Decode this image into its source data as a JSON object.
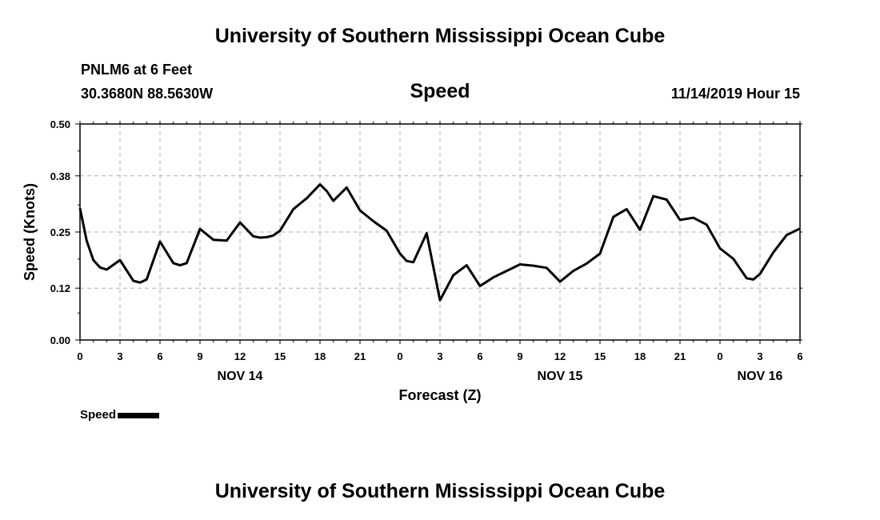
{
  "header": {
    "title": "University of Southern Mississippi Ocean Cube",
    "station": "PNLM6 at 6 Feet",
    "coordinates": "30.3680N 88.5630W",
    "chart_title": "Speed",
    "datetime": "11/14/2019 Hour 15"
  },
  "footer": {
    "title": "University of Southern Mississippi Ocean Cube"
  },
  "legend": {
    "label": "Speed"
  },
  "colors": {
    "line": "#000000",
    "grid": "#b0b0b0",
    "background": "#ffffff"
  },
  "chart_data": {
    "type": "line",
    "title": "Speed",
    "xlabel": "Forecast (Z)",
    "ylabel": "Speed (Knots)",
    "ylim": [
      0,
      0.5
    ],
    "xlim": [
      0,
      54
    ],
    "x_unit": "hours since NOV 14 00Z",
    "grid": true,
    "legend_position": "bottom-left",
    "y_ticks": [
      "0.00",
      "0.12",
      "0.25",
      "0.38",
      "0.50"
    ],
    "x_ticks": [
      "0",
      "3",
      "6",
      "9",
      "12",
      "15",
      "18",
      "21",
      "0",
      "3",
      "6",
      "9",
      "12",
      "15",
      "18",
      "21",
      "0",
      "3",
      "6"
    ],
    "date_labels": [
      {
        "label": "NOV 14",
        "hour": 12
      },
      {
        "label": "NOV 15",
        "hour": 36
      },
      {
        "label": "NOV 16",
        "hour": 51
      }
    ],
    "series": [
      {
        "name": "Speed",
        "x": [
          0,
          0.5,
          1,
          1.5,
          2,
          3,
          4,
          4.5,
          5,
          6,
          6.5,
          7,
          7.5,
          8,
          9,
          10,
          11,
          12,
          13,
          13.5,
          14,
          14.5,
          15,
          16,
          17,
          18,
          18.5,
          19,
          20,
          21,
          22,
          23,
          24,
          24.5,
          25,
          26,
          27,
          28,
          29,
          30,
          31,
          32,
          33,
          34,
          35,
          36,
          37,
          38,
          39,
          40,
          41,
          42,
          43,
          44,
          45,
          46,
          47,
          48,
          48.5,
          49,
          50,
          50.5,
          51,
          52,
          53,
          54
        ],
        "y": [
          0.305,
          0.23,
          0.185,
          0.168,
          0.163,
          0.185,
          0.137,
          0.133,
          0.14,
          0.228,
          0.203,
          0.178,
          0.173,
          0.178,
          0.257,
          0.232,
          0.23,
          0.272,
          0.24,
          0.237,
          0.238,
          0.242,
          0.253,
          0.303,
          0.328,
          0.36,
          0.345,
          0.322,
          0.353,
          0.3,
          0.275,
          0.253,
          0.2,
          0.183,
          0.18,
          0.247,
          0.092,
          0.15,
          0.173,
          0.125,
          0.145,
          0.16,
          0.175,
          0.172,
          0.167,
          0.135,
          0.16,
          0.177,
          0.2,
          0.285,
          0.303,
          0.255,
          0.333,
          0.325,
          0.278,
          0.283,
          0.267,
          0.212,
          0.2,
          0.188,
          0.143,
          0.14,
          0.153,
          0.203,
          0.243,
          0.258
        ]
      }
    ]
  }
}
